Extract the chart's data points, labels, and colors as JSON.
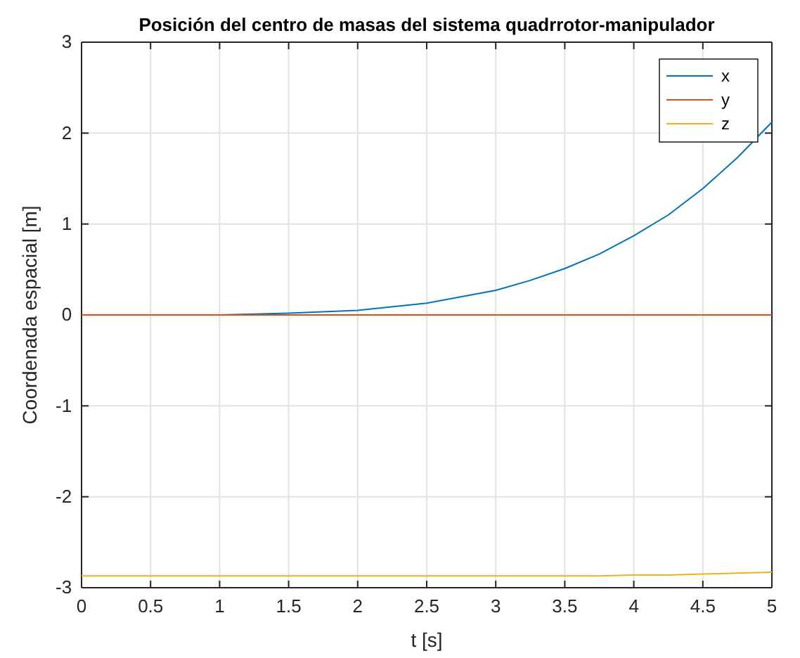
{
  "chart_data": {
    "type": "line",
    "title": "Posición del centro de masas del sistema quadrrotor-manipulador",
    "xlabel": "t [s]",
    "ylabel": "Coordenada espacial [m]",
    "x": [
      0,
      0.5,
      1,
      1.5,
      2,
      2.5,
      3,
      3.25,
      3.5,
      3.75,
      4,
      4.25,
      4.5,
      4.75,
      5
    ],
    "series": [
      {
        "name": "x",
        "color": "#0072bd",
        "values": [
          0,
          0,
          0,
          0.02,
          0.05,
          0.13,
          0.27,
          0.38,
          0.51,
          0.67,
          0.87,
          1.1,
          1.39,
          1.73,
          2.12
        ]
      },
      {
        "name": "y",
        "color": "#d95319",
        "values": [
          0,
          0,
          0,
          0,
          0,
          0,
          0,
          0,
          0,
          0,
          0,
          0,
          0,
          0,
          0
        ]
      },
      {
        "name": "z",
        "color": "#edb120",
        "values": [
          -2.87,
          -2.87,
          -2.87,
          -2.87,
          -2.87,
          -2.87,
          -2.87,
          -2.87,
          -2.87,
          -2.87,
          -2.86,
          -2.86,
          -2.85,
          -2.84,
          -2.83
        ]
      }
    ],
    "xlim": [
      0,
      5
    ],
    "xticks": [
      0,
      0.5,
      1,
      1.5,
      2,
      2.5,
      3,
      3.5,
      4,
      4.5,
      5
    ],
    "ylim": [
      -3,
      3
    ],
    "yticks": [
      -3,
      -2,
      -1,
      0,
      1,
      2,
      3
    ],
    "grid": true,
    "legend": "top right"
  }
}
